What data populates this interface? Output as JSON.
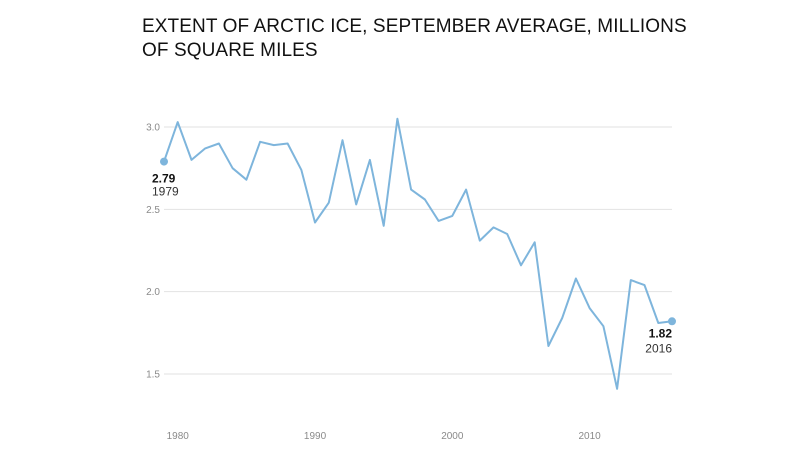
{
  "chart_data": {
    "type": "line",
    "title": "EXTENT OF ARCTIC ICE, SEPTEMBER AVERAGE, MILLIONS OF SQUARE MILES",
    "xlabel": "",
    "ylabel": "",
    "xlim": [
      1979,
      2016
    ],
    "ylim": [
      1.35,
      3.15
    ],
    "x_ticks": [
      1980,
      1990,
      2000,
      2010
    ],
    "y_ticks": [
      1.5,
      2.0,
      2.5,
      3.0
    ],
    "y_tick_labels": [
      "1.5",
      "2.0",
      "2.5",
      "3.0"
    ],
    "grid": true,
    "line_color": "#7eb5dc",
    "x": [
      1979,
      1980,
      1981,
      1982,
      1983,
      1984,
      1985,
      1986,
      1987,
      1988,
      1989,
      1990,
      1991,
      1992,
      1993,
      1994,
      1995,
      1996,
      1997,
      1998,
      1999,
      2000,
      2001,
      2002,
      2003,
      2004,
      2005,
      2006,
      2007,
      2008,
      2009,
      2010,
      2011,
      2012,
      2013,
      2014,
      2015,
      2016
    ],
    "values": [
      2.79,
      3.03,
      2.8,
      2.87,
      2.9,
      2.75,
      2.68,
      2.91,
      2.89,
      2.9,
      2.74,
      2.42,
      2.54,
      2.92,
      2.53,
      2.8,
      2.4,
      3.05,
      2.62,
      2.56,
      2.43,
      2.46,
      2.62,
      2.31,
      2.39,
      2.35,
      2.16,
      2.3,
      1.67,
      1.84,
      2.08,
      1.9,
      1.79,
      1.41,
      2.07,
      2.04,
      1.81,
      1.82
    ],
    "annotations": [
      {
        "year_label": "1979",
        "value_label": "2.79"
      },
      {
        "year_label": "2016",
        "value_label": "1.82"
      }
    ]
  }
}
